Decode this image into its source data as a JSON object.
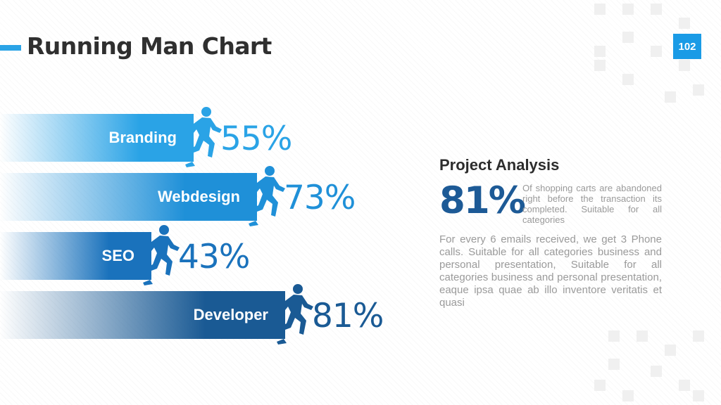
{
  "header": {
    "title": "Running Man Chart",
    "page_number": "102"
  },
  "chart_data": {
    "type": "bar",
    "categories": [
      "Branding",
      "Webdesign",
      "SEO",
      "Developer"
    ],
    "values": [
      55,
      73,
      43,
      81
    ],
    "value_labels": [
      "55%",
      "73%",
      "43%",
      "81%"
    ],
    "colors": [
      "#2aa3e6",
      "#1f90d8",
      "#1a72bc",
      "#1a5a94"
    ],
    "value_colors": [
      "#2aa3e6",
      "#1f90d8",
      "#1a72bc",
      "#1a5a94"
    ],
    "ylim": [
      0,
      100
    ],
    "orientation": "horizontal",
    "marker_icon": "running-man-icon"
  },
  "analysis": {
    "title": "Project Analysis",
    "stat_value": "81%",
    "stat_description": "Of shopping carts are abandoned right before the transaction its completed. Suitable for all categories",
    "body": "For every 6 emails received, we get 3 Phone calls. Suitable for all categories business and personal presentation, Suitable for all categories business and personal presentation, eaque ipsa quae ab illo inventore veritatis et quasi"
  }
}
